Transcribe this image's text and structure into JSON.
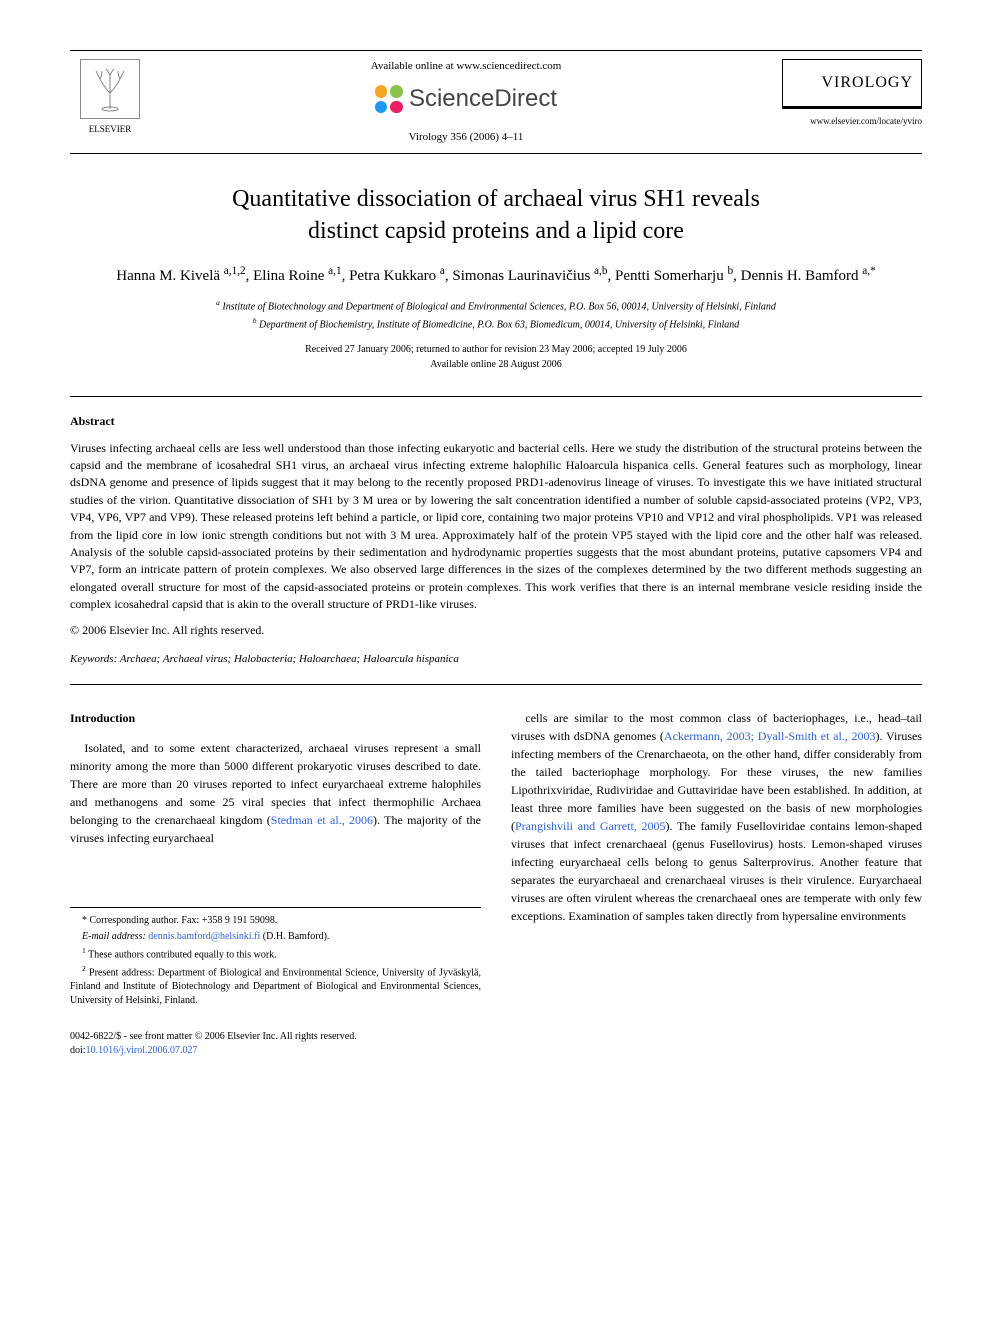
{
  "header": {
    "elsevier_label": "ELSEVIER",
    "available_text": "Available online at www.sciencedirect.com",
    "sd_text": "ScienceDirect",
    "sd_dot_colors": [
      "#f5a623",
      "#8bc34a",
      "#2196f3",
      "#e91e63"
    ],
    "citation": "Virology 356 (2006) 4–11",
    "journal_name": "VIROLOGY",
    "journal_url": "www.elsevier.com/locate/yviro"
  },
  "title_line1": "Quantitative dissociation of archaeal virus SH1 reveals",
  "title_line2": "distinct capsid proteins and a lipid core",
  "authors_html": "Hanna M. Kivelä <sup>a,1,2</sup>, Elina Roine <sup>a,1</sup>, Petra Kukkaro <sup>a</sup>, Simonas Laurinavičius <sup>a,b</sup>, Pentti Somerharju <sup>b</sup>, Dennis H. Bamford <sup>a,*</sup>",
  "affiliations": {
    "a": "Institute of Biotechnology and Department of Biological and Environmental Sciences, P.O. Box 56, 00014, University of Helsinki, Finland",
    "b": "Department of Biochemistry, Institute of Biomedicine, P.O. Box 63, Biomedicum, 00014, University of Helsinki, Finland"
  },
  "dates_line1": "Received 27 January 2006; returned to author for revision 23 May 2006; accepted 19 July 2006",
  "dates_line2": "Available online 28 August 2006",
  "abstract_title": "Abstract",
  "abstract_body": "Viruses infecting archaeal cells are less well understood than those infecting eukaryotic and bacterial cells. Here we study the distribution of the structural proteins between the capsid and the membrane of icosahedral SH1 virus, an archaeal virus infecting extreme halophilic Haloarcula hispanica cells. General features such as morphology, linear dsDNA genome and presence of lipids suggest that it may belong to the recently proposed PRD1-adenovirus lineage of viruses. To investigate this we have initiated structural studies of the virion. Quantitative dissociation of SH1 by 3 M urea or by lowering the salt concentration identified a number of soluble capsid-associated proteins (VP2, VP3, VP4, VP6, VP7 and VP9). These released proteins left behind a particle, or lipid core, containing two major proteins VP10 and VP12 and viral phospholipids. VP1 was released from the lipid core in low ionic strength conditions but not with 3 M urea. Approximately half of the protein VP5 stayed with the lipid core and the other half was released. Analysis of the soluble capsid-associated proteins by their sedimentation and hydrodynamic properties suggests that the most abundant proteins, putative capsomers VP4 and VP7, form an intricate pattern of protein complexes. We also observed large differences in the sizes of the complexes determined by the two different methods suggesting an elongated overall structure for most of the capsid-associated proteins or protein complexes. This work verifies that there is an internal membrane vesicle residing inside the complex icosahedral capsid that is akin to the overall structure of PRD1-like viruses.",
  "copyright": "© 2006 Elsevier Inc. All rights reserved.",
  "keywords_label": "Keywords:",
  "keywords_text": "Archaea; Archaeal virus; Halobacteria; Haloarchaea; Haloarcula hispanica",
  "intro_title": "Introduction",
  "intro_left_1": "Isolated, and to some extent characterized, archaeal viruses represent a small minority among the more than 5000 different prokaryotic viruses described to date. There are more than 20 viruses reported to infect euryarchaeal extreme halophiles and methanogens and some 25 viral species that infect thermophilic Archaea belonging to the crenarchaeal kingdom (",
  "intro_left_link1": "Stedman et al., 2006",
  "intro_left_2": "). The majority of the viruses infecting euryarchaeal",
  "intro_right_1": "cells are similar to the most common class of bacteriophages, i.e., head–tail viruses with dsDNA genomes (",
  "intro_right_link1": "Ackermann, 2003; Dyall-Smith et al., 2003",
  "intro_right_2": "). Viruses infecting members of the Crenarchaeota, on the other hand, differ considerably from the tailed bacteriophage morphology. For these viruses, the new families Lipothrixviridae, Rudiviridae and Guttaviridae have been established. In addition, at least three more families have been suggested on the basis of new morphologies (",
  "intro_right_link2": "Prangishvili and Garrett, 2005",
  "intro_right_3": "). The family Fuselloviridae contains lemon-shaped viruses that infect crenarchaeal (genus Fusellovirus) hosts. Lemon-shaped viruses infecting euryarchaeal cells belong to genus Salterprovirus. Another feature that separates the euryarchaeal and crenarchaeal viruses is their virulence. Euryarchaeal viruses are often virulent whereas the crenarchaeal ones are temperate with only few exceptions. Examination of samples taken directly from hypersaline environments",
  "footnotes": {
    "corr": "* Corresponding author. Fax: +358 9 191 59098.",
    "email_label": "E-mail address:",
    "email": "dennis.bamford@helsinki.fi",
    "email_paren": "(D.H. Bamford).",
    "n1": "These authors contributed equally to this work.",
    "n2": "Present address: Department of Biological and Environmental Science, University of Jyväskylä, Finland and Institute of Biotechnology and Department of Biological and Environmental Sciences, University of Helsinki, Finland."
  },
  "bottom": {
    "line1": "0042-6822/$ - see front matter © 2006 Elsevier Inc. All rights reserved.",
    "doi_label": "doi:",
    "doi": "10.1016/j.virol.2006.07.027"
  },
  "colors": {
    "link": "#2962d9",
    "text": "#000000",
    "bg": "#ffffff"
  }
}
